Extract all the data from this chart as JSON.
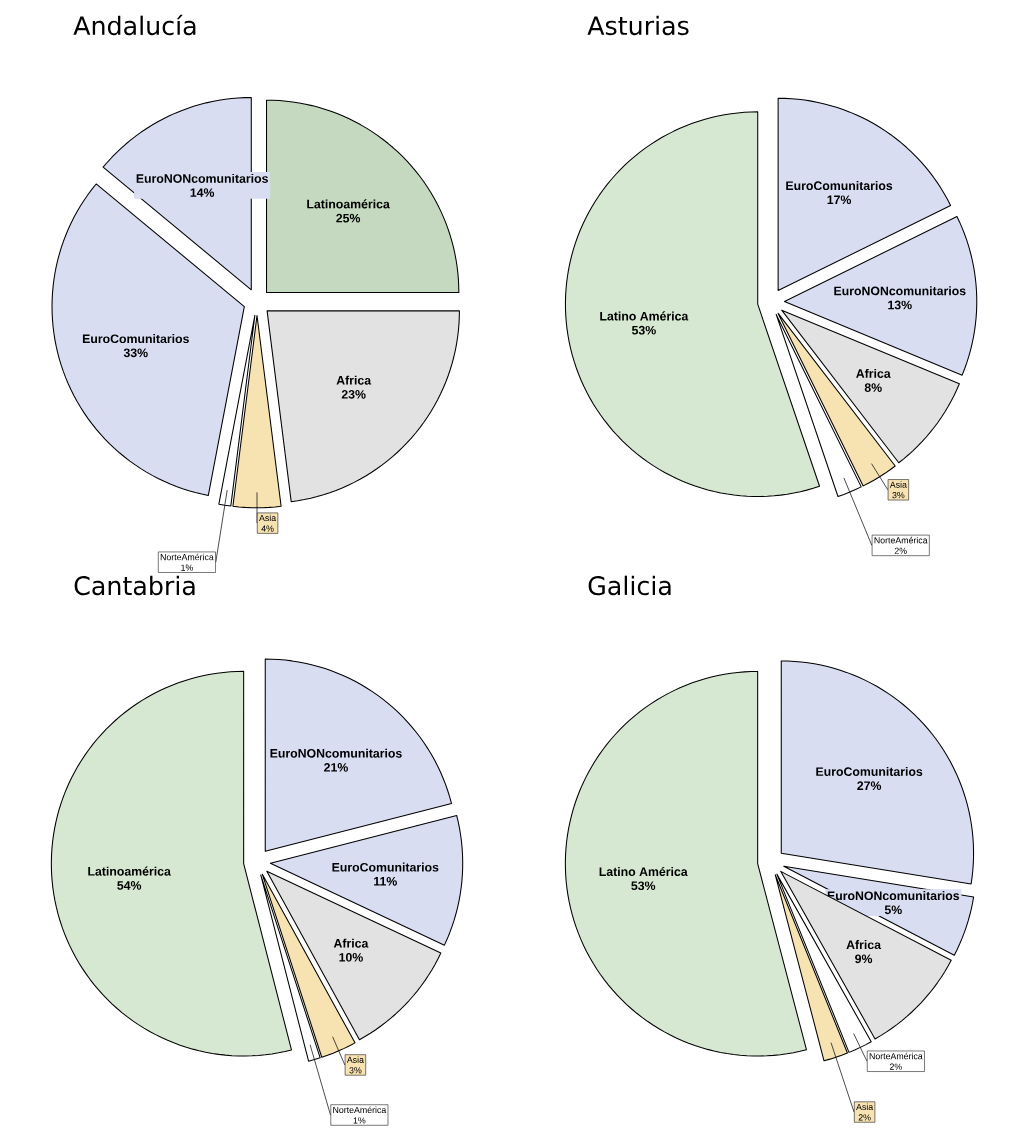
{
  "chart_data": [
    {
      "type": "pie",
      "title": "Andalucía",
      "categories": [
        "Latinoamérica",
        "Africa",
        "Asia",
        "NorteAmérica",
        "EuroComunitarios",
        "EuroNONcomunitarios"
      ],
      "values": [
        25,
        23,
        4,
        1,
        33,
        14
      ],
      "value_labels": [
        "25%",
        "23%",
        "4%",
        "1%",
        "33%",
        "14%"
      ],
      "colors": [
        "#c5d9c1",
        "#e2e2e2",
        "#f7e3b2",
        "#ffffff",
        "#d9ddf2",
        "#d9ddf2"
      ]
    },
    {
      "type": "pie",
      "title": "Asturias",
      "categories": [
        "EuroComunitarios",
        "EuroNONcomunitarios",
        "Africa",
        "Asia",
        "NorteAmérica",
        "Latino América"
      ],
      "values": [
        17,
        13,
        8,
        3,
        2,
        53
      ],
      "value_labels": [
        "17%",
        "13%",
        "8%",
        "3%",
        "2%",
        "53%"
      ],
      "colors": [
        "#d9ddf2",
        "#d9ddf2",
        "#e2e2e2",
        "#f7e3b2",
        "#ffffff",
        "#d6e8d2"
      ]
    },
    {
      "type": "pie",
      "title": "Cantabria",
      "categories": [
        "EuroNONcomunitarios",
        "EuroComunitarios",
        "Africa",
        "Asia",
        "NorteAmérica",
        "Latinoamérica"
      ],
      "values": [
        21,
        11,
        10,
        3,
        1,
        54
      ],
      "value_labels": [
        "21%",
        "11%",
        "10%",
        "3%",
        "1%",
        "54%"
      ],
      "colors": [
        "#d9ddf2",
        "#d9ddf2",
        "#e2e2e2",
        "#f7e3b2",
        "#ffffff",
        "#d6e8d2"
      ]
    },
    {
      "type": "pie",
      "title": "Galicia",
      "categories": [
        "EuroComunitarios",
        "EuroNONcomunitarios",
        "Africa",
        "NorteAmérica",
        "Asia",
        "Latino América"
      ],
      "values": [
        27,
        5,
        9,
        2,
        2,
        53
      ],
      "value_labels": [
        "27%",
        "5%",
        "9%",
        "2%",
        "2%",
        "53%"
      ],
      "colors": [
        "#d9ddf2",
        "#d9ddf2",
        "#e2e2e2",
        "#ffffff",
        "#f7e3b2",
        "#d6e8d2"
      ]
    }
  ]
}
